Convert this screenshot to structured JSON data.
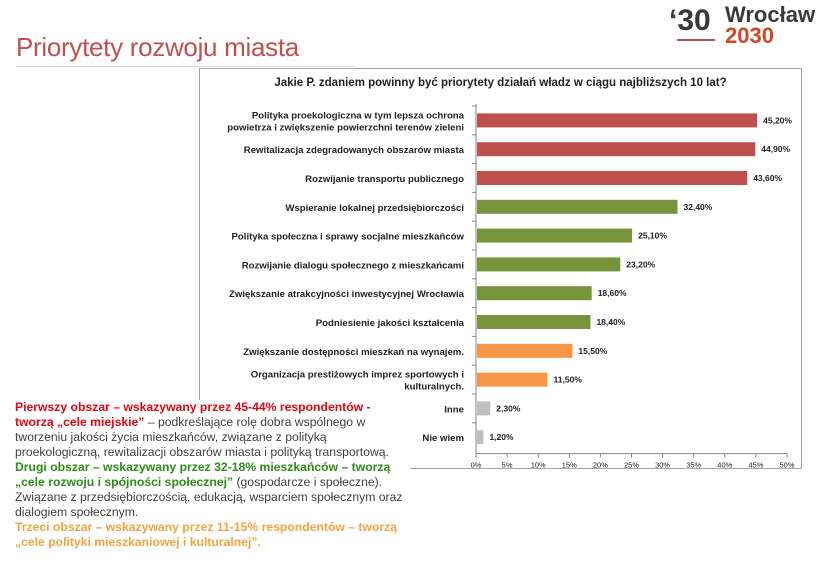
{
  "header": {
    "title": "Priorytety rozwoju miasta",
    "logo": {
      "quote": "‘30",
      "city": "Wrocław",
      "year": "2030"
    }
  },
  "colors": {
    "title": "#c0504d",
    "red_bar": "#c0504d",
    "green_bar": "#77933c",
    "orange_bar": "#f79646",
    "gray_bar": "#bfbfbf"
  },
  "chart_data": {
    "type": "bar",
    "orientation": "horizontal",
    "title": "Jakie P. zdaniem powinny być priorytety działań władz w ciągu najbliższych 10 lat?",
    "xlim": [
      0,
      50
    ],
    "xticks": [
      "0%",
      "5%",
      "10%",
      "15%",
      "20%",
      "25%",
      "30%",
      "35%",
      "40%",
      "45%",
      "50%"
    ],
    "grid": false,
    "categories": [
      [
        "Polityka proekologiczna w tym lepsza ochrona",
        "powietrza i zwiększenie powierzchni terenów zieleni"
      ],
      [
        "Rewitalizacja zdegradowanych obszarów miasta"
      ],
      [
        "Rozwijanie transportu publicznego"
      ],
      [
        "Wspieranie lokalnej przedsiębiorczości"
      ],
      [
        "Polityka społeczna i sprawy socjalne mieszkańców"
      ],
      [
        "Rozwijanie dialogu społecznego z mieszkańcami"
      ],
      [
        "Zwiększanie atrakcyjności inwestycyjnej Wrocławia"
      ],
      [
        "Podniesienie jakości kształcenia"
      ],
      [
        "Zwiększanie  dostępności mieszkań na wynajem."
      ],
      [
        "Organizacja prestiżowych imprez sportowych i",
        "kulturalnych."
      ],
      [
        "Inne"
      ],
      [
        "Nie wiem"
      ]
    ],
    "values": [
      45.2,
      44.9,
      43.6,
      32.4,
      25.1,
      23.2,
      18.6,
      18.4,
      15.5,
      11.5,
      2.3,
      1.2
    ],
    "value_labels": [
      "45,20%",
      "44,90%",
      "43,60%",
      "32,40%",
      "25,10%",
      "23,20%",
      "18,60%",
      "18,40%",
      "15,50%",
      "11,50%",
      "2,30%",
      "1,20%"
    ],
    "bar_colors": [
      "#c0504d",
      "#c0504d",
      "#c0504d",
      "#77933c",
      "#77933c",
      "#77933c",
      "#77933c",
      "#77933c",
      "#f79646",
      "#f79646",
      "#bfbfbf",
      "#bfbfbf"
    ]
  },
  "description": {
    "p1_head": "Pierwszy obszar – wskazywany przez 45-44% respondentów - tworzą „cele miejskie”",
    "p1_body": " – podkreślające rolę dobra wspólnego w tworzeniu jakości życia mieszkańców, związane z polityką proekologiczną, rewitalizacji obszarów miasta i polityką transportową.",
    "p2_head": "Drugi obszar – wskazywany przez 32-18% mieszkańców – tworzą „cele rozwoju i spójności społecznej”",
    "p2_body": " (gospodarcze i społeczne). Związane z przedsiębiorczością, edukacją, wsparciem społecznym oraz dialogiem społecznym.",
    "p3_head": "Trzeci obszar – wskazywany przez 11-15% respondentów – tworzą „cele polityki mieszkaniowej i kulturalnej”."
  }
}
